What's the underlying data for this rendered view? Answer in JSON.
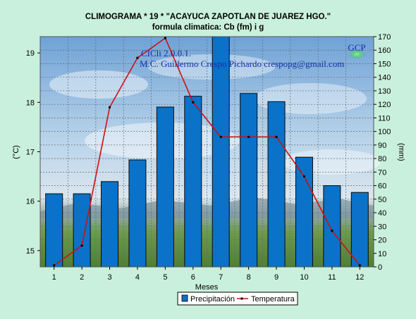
{
  "header": {
    "title": "CLIMOGRAMA *      19    * \"ACAYUCA  ZAPOTLAN DE JUAREZ  HGO.\"",
    "subtitle": "formula climatica: Cb  (fm) i g"
  },
  "annotations": {
    "version": "CICli 2.0.0.1.",
    "author": "M.C. Guillermo Crespo Pichardo  crespopg@gmail.com",
    "logo": "GCP"
  },
  "colors": {
    "background": "#c9f0dc",
    "bar_fill": "#0a72c8",
    "line": "#cc1111",
    "sky_top": "#93bfe4",
    "field": "#5a8a3a"
  },
  "chart_data": {
    "type": "bar",
    "xlabel": "Meses",
    "ylabel_left": "(°C)",
    "ylabel_right": "(mm)",
    "categories": [
      "1",
      "2",
      "3",
      "4",
      "5",
      "6",
      "7",
      "8",
      "9",
      "10",
      "11",
      "12"
    ],
    "ylim_left": [
      14.67,
      19.33
    ],
    "yticks_left": [
      "15",
      "16",
      "17",
      "18",
      "19"
    ],
    "ylim_right": [
      0,
      170
    ],
    "yticks_right": [
      "0",
      "10",
      "20",
      "30",
      "40",
      "50",
      "60",
      "70",
      "80",
      "90",
      "100",
      "110",
      "120",
      "130",
      "140",
      "150",
      "160",
      "170"
    ],
    "grid": true,
    "legend_position": "bottom",
    "series": [
      {
        "name": "Precipitación",
        "type": "bar",
        "axis": "right",
        "values": [
          54,
          54,
          63,
          79,
          118,
          126,
          170,
          128,
          122,
          81,
          60,
          55
        ]
      },
      {
        "name": "Temperatura",
        "type": "line",
        "axis": "left",
        "values": [
          14.7,
          15.1,
          17.9,
          18.9,
          19.3,
          18.0,
          17.3,
          17.3,
          17.3,
          16.5,
          15.4,
          14.7
        ]
      }
    ]
  }
}
